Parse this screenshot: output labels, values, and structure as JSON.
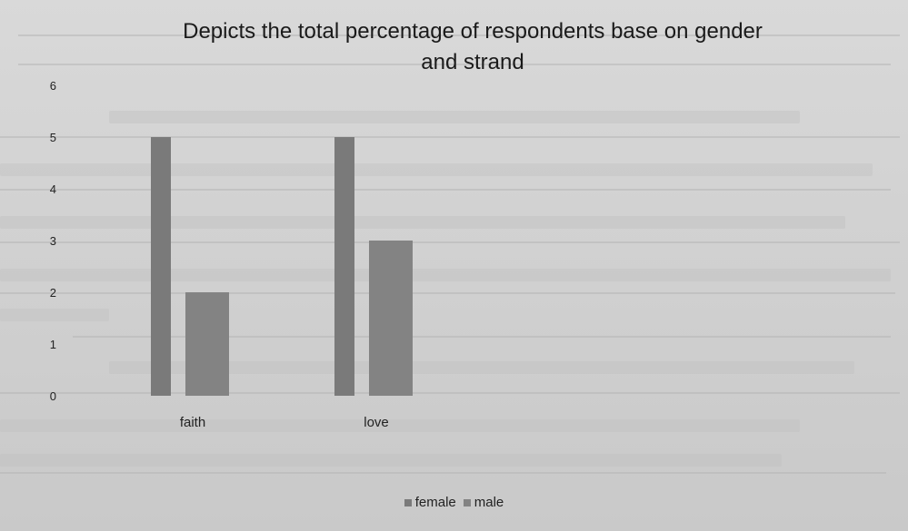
{
  "chart_data": {
    "type": "bar",
    "title": "Depicts the total percentage of respondents base on gender and strand",
    "title_lines": [
      "Depicts the total percentage of respondents base on gender",
      "and strand"
    ],
    "categories": [
      "faith",
      "love"
    ],
    "series": [
      {
        "name": "female",
        "values": [
          5,
          5
        ],
        "color": "#7a7a7a"
      },
      {
        "name": "male",
        "values": [
          2,
          3
        ],
        "color": "#838383"
      }
    ],
    "ylim": [
      0,
      6
    ],
    "yticks": [
      "0",
      "1",
      "2",
      "3",
      "4",
      "5",
      "6"
    ],
    "xlabel": "",
    "ylabel": "",
    "grid": false,
    "legend_position": "bottom"
  }
}
